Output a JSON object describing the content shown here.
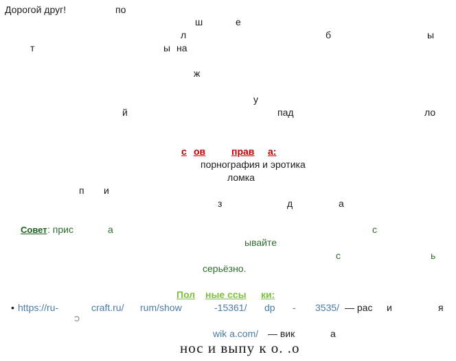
{
  "lines": [
    {
      "id": "greeting",
      "text": "Дорогой друг!"
    },
    {
      "id": "l1a",
      "text": "по"
    },
    {
      "id": "l2a",
      "text": "ш"
    },
    {
      "id": "l2b",
      "text": "е"
    },
    {
      "id": "l3a",
      "text": "л"
    },
    {
      "id": "l3b",
      "text": "б"
    },
    {
      "id": "l3c",
      "text": "ы"
    },
    {
      "id": "l4a",
      "text": "т"
    },
    {
      "id": "l4b",
      "text": "ы"
    },
    {
      "id": "l4c",
      "text": "на"
    },
    {
      "id": "l5a",
      "text": "ж"
    },
    {
      "id": "l6a",
      "text": "у"
    },
    {
      "id": "l7a",
      "text": "й"
    },
    {
      "id": "l7b",
      "text": "пад"
    },
    {
      "id": "l7c",
      "text": "ло"
    }
  ],
  "rules": {
    "heading_parts": [
      "с",
      "ов",
      "прав",
      "а:"
    ],
    "item_porn": "порнография и эротика",
    "item_break": "ломка",
    "frag_p": "п",
    "frag_i": "и",
    "frag_z": "з",
    "frag_d": "д",
    "frag_a": "а"
  },
  "advice": {
    "label": "Совет",
    "colon_text": ": прис",
    "frag_a": "а",
    "frag_s": "с",
    "frag_yvaite": "ывайте",
    "frag_s2": "с",
    "frag_soft": "ь",
    "seriously": "серьёзно."
  },
  "links": {
    "heading_parts": [
      "Пол",
      "ные ссы",
      "ки:"
    ],
    "bullet": "•",
    "url_parts": [
      "https://ru-",
      "craft.ru/",
      "rum/show",
      "-15361/",
      "dp",
      "-",
      "3535/"
    ],
    "dash_text": "— рас",
    "frag_i": "и",
    "frag_ya": "я",
    "frag_b": "Ͻ",
    "wiki_link": "wik a.com/",
    "wiki_dash": "— вик",
    "wiki_a": "а"
  },
  "footer": {
    "big_text": "нос и выпу к о. .о"
  }
}
